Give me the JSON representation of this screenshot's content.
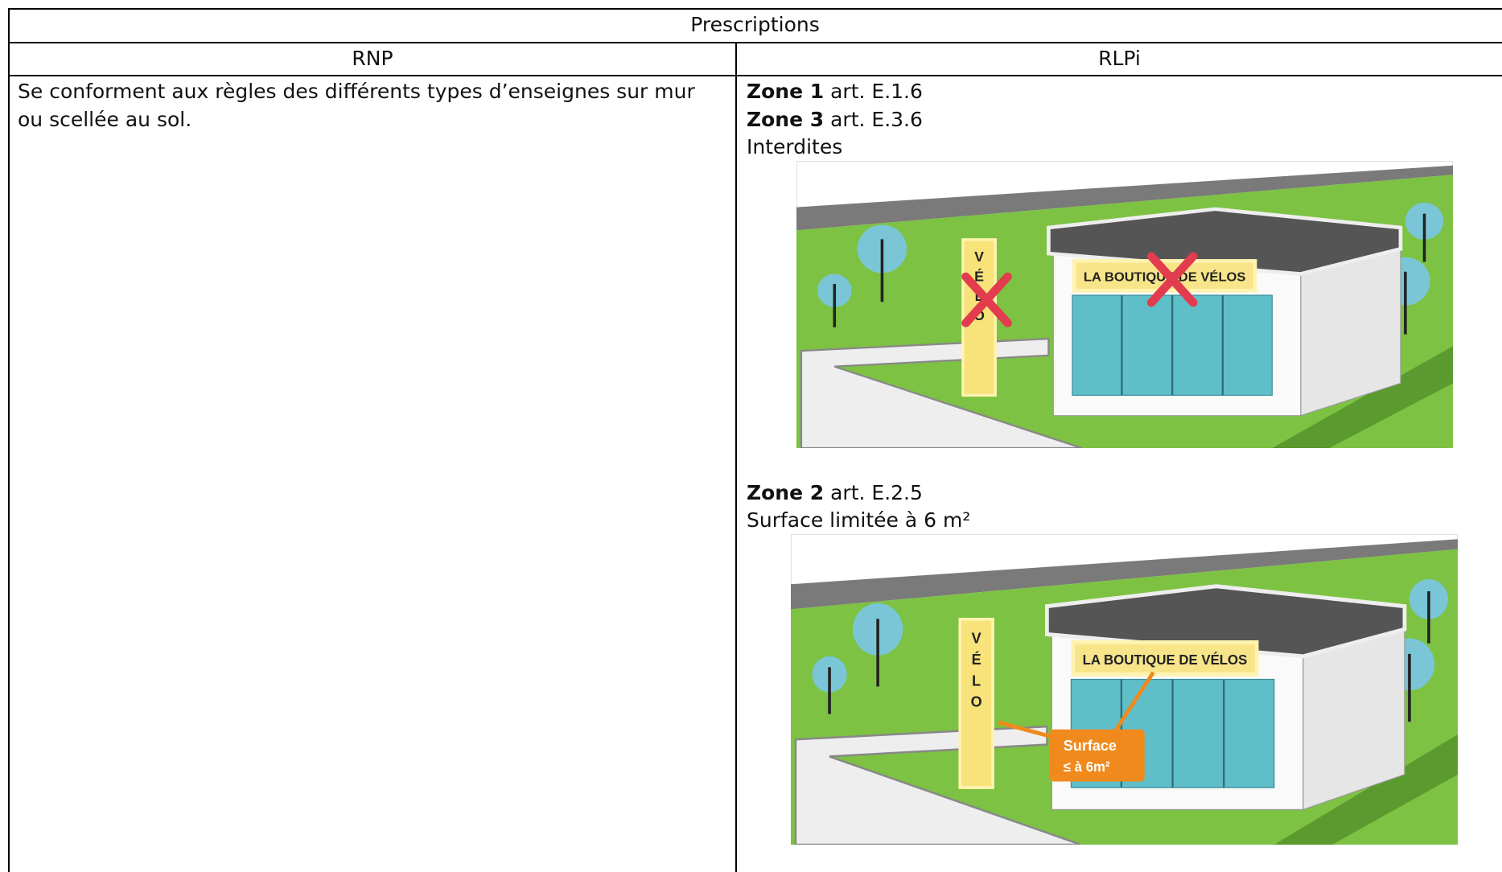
{
  "table": {
    "title": "Prescriptions",
    "columns": [
      "RNP",
      "RLPi"
    ],
    "rnp_text": "Se conforment aux règles des différents types d’enseignes sur mur ou scellée au sol.",
    "rlpi": {
      "block1": {
        "lines": [
          {
            "zone": "Zone 1",
            "article": "art. E.1.6"
          },
          {
            "zone": "Zone 3",
            "article": "art. E.3.6"
          }
        ],
        "rule": "Interdites",
        "illustration": {
          "shop_sign": "LA BOUTIQUE DE VÉLOS",
          "totem": "VÉLO"
        }
      },
      "block2": {
        "lines": [
          {
            "zone": "Zone 2",
            "article": "art. E.2.5"
          }
        ],
        "rule": "Surface limitée à 6 m²",
        "illustration": {
          "shop_sign": "LA BOUTIQUE DE VÉLOS",
          "totem": "VÉLO",
          "callout": [
            "Surface",
            "≤ à 6m²"
          ]
        }
      }
    }
  }
}
